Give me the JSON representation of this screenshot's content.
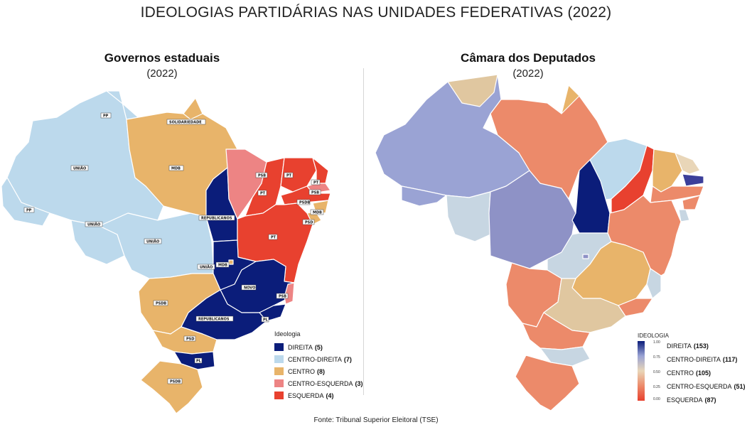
{
  "title": "IDEOLOGIAS PARTIDÁRIAS NAS UNIDADES FEDERATIVAS (2022)",
  "left_map": {
    "title": "Governos estaduais",
    "year": "(2022)",
    "colors": {
      "direita": "#0b1d7a",
      "centro_direita": "#bcd9ec",
      "centro": "#e8b46a",
      "centro_esquerda": "#ed8484",
      "esquerda": "#e8412f"
    },
    "state_labels": [
      "PP",
      "UNIÃO",
      "PP",
      "UNIÃO",
      "UNIÃO",
      "UNIÃO",
      "SOLIDARIEDADE",
      "MDB",
      "REPUBLICANOS",
      "PSB",
      "PT",
      "PT",
      "PT",
      "PSB",
      "PSDB",
      "MDB",
      "PSD",
      "PT",
      "MDB",
      "NOVO",
      "PSB",
      "REPUBLICANOS",
      "PL",
      "PSDB",
      "PSD",
      "PL",
      "PSDB"
    ],
    "legend": {
      "title": "Ideologia",
      "items": [
        {
          "label": "DIREITA",
          "count": "(5)",
          "color": "#0b1d7a"
        },
        {
          "label": "CENTRO-DIREITA",
          "count": "(7)",
          "color": "#bcd9ec"
        },
        {
          "label": "CENTRO",
          "count": "(8)",
          "color": "#e8b46a"
        },
        {
          "label": "CENTRO-ESQUERDA",
          "count": "(3)",
          "color": "#ed8484"
        },
        {
          "label": "ESQUERDA",
          "count": "(4)",
          "color": "#e8412f"
        }
      ]
    }
  },
  "right_map": {
    "title": "Câmara dos Deputados",
    "year": "(2022)",
    "legend": {
      "title": "IDEOLOGIA",
      "ticks": [
        "1.00",
        "0.75",
        "0.50",
        "0.25",
        "0.00"
      ],
      "items": [
        {
          "label": "DIREITA",
          "count": "(153)"
        },
        {
          "label": "CENTRO-DIREITA",
          "count": "(117)"
        },
        {
          "label": "CENTRO",
          "count": "(105)"
        },
        {
          "label": "CENTRO-ESQUERDA",
          "count": "(51)"
        },
        {
          "label": "ESQUERDA",
          "count": "(87)"
        }
      ],
      "scale_colors": [
        "#0b1d7a",
        "#9aa3d4",
        "#e9d6b8",
        "#ec8a6a",
        "#e8412f"
      ]
    }
  },
  "source": "Fonte: Tribunal Superior Eleitoral (TSE)"
}
